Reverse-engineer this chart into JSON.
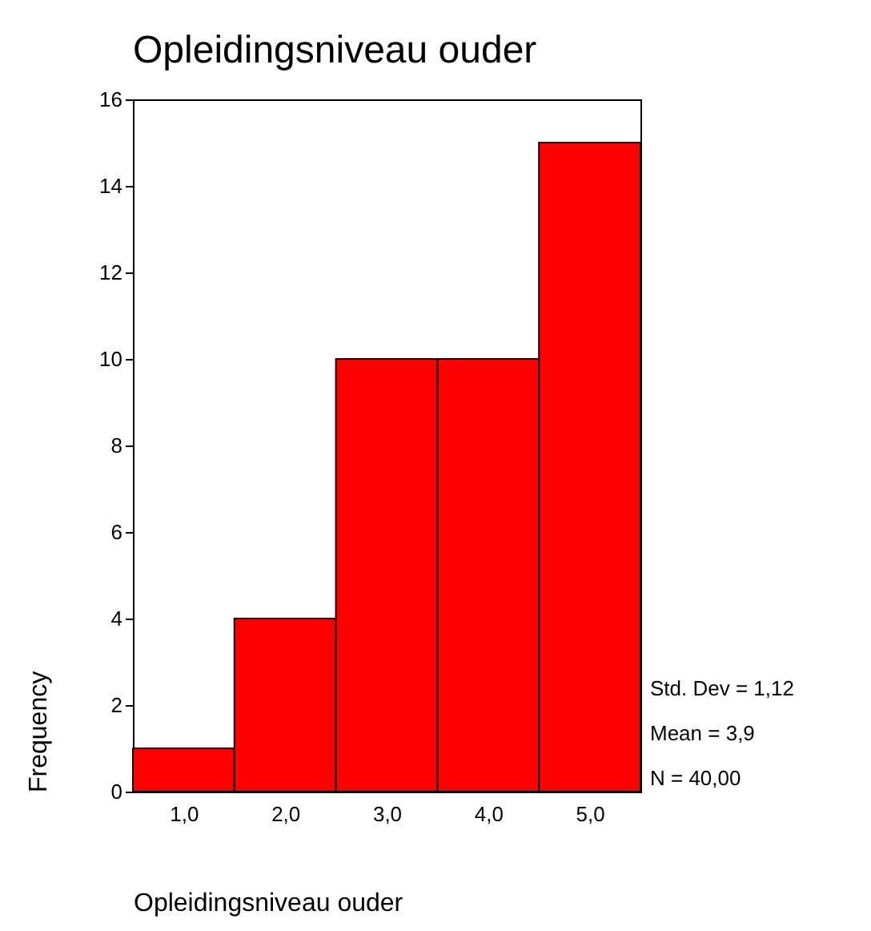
{
  "chart_data": {
    "type": "histogram",
    "title": "Opleidingsniveau ouder",
    "xlabel": "Opleidingsniveau ouder",
    "ylabel": "Frequency",
    "bins": [
      0.5,
      1.5,
      2.5,
      3.5,
      4.5,
      5.5
    ],
    "values": [
      1,
      4,
      10,
      10,
      15
    ],
    "color": "#ff0000",
    "xlim": [
      0.5,
      5.5
    ],
    "xticks": [
      {
        "value": 1,
        "label": "1,0"
      },
      {
        "value": 2,
        "label": "2,0"
      },
      {
        "value": 3,
        "label": "3,0"
      },
      {
        "value": 4,
        "label": "4,0"
      },
      {
        "value": 5,
        "label": "5,0"
      }
    ],
    "ylim": [
      0,
      16
    ],
    "yticks": [
      0,
      2,
      4,
      6,
      8,
      10,
      12,
      14,
      16
    ],
    "grid": false,
    "annotations": [
      "Std. Dev = 1,12",
      "Mean = 3,9",
      "N = 40,00"
    ]
  }
}
